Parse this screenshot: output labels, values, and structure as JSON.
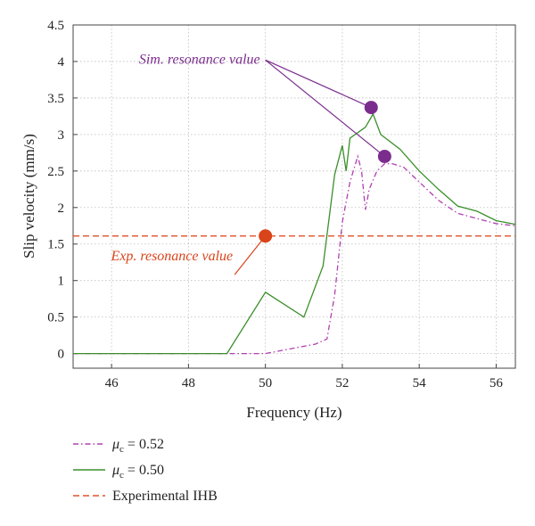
{
  "chart_data": {
    "type": "line",
    "xlabel": "Frequency (Hz)",
    "ylabel": "Slip velocity (mm/s)",
    "xlim": [
      45,
      56.5
    ],
    "ylim": [
      -0.2,
      4.5
    ],
    "xticks": [
      46,
      48,
      50,
      52,
      54,
      56
    ],
    "yticks": [
      0,
      0.5,
      1,
      1.5,
      2,
      2.5,
      3,
      3.5,
      4,
      4.5
    ],
    "xtick_labels": [
      "46",
      "48",
      "50",
      "52",
      "54",
      "56"
    ],
    "ytick_labels": [
      "0",
      "0.5",
      "1",
      "1.5",
      "2",
      "2.5",
      "3",
      "3.5",
      "4",
      "4.5"
    ],
    "grid": true,
    "series": [
      {
        "name_prefix": "μ",
        "name_sub": "c",
        "name_suffix": " = 0.52",
        "color": "#b040b0",
        "style": "dashdot",
        "x": [
          45,
          46,
          47,
          48,
          49,
          50,
          50.5,
          51,
          51.3,
          51.6,
          51.8,
          52,
          52.2,
          52.4,
          52.5,
          52.6,
          52.7,
          52.9,
          53.1,
          53.3,
          53.6,
          54,
          54.5,
          55,
          55.5,
          56,
          56.5
        ],
        "y": [
          0,
          0,
          0,
          0,
          0,
          0,
          0.05,
          0.1,
          0.13,
          0.2,
          0.8,
          1.8,
          2.35,
          2.7,
          2.5,
          1.97,
          2.25,
          2.5,
          2.6,
          2.6,
          2.55,
          2.35,
          2.1,
          1.92,
          1.85,
          1.78,
          1.75
        ]
      },
      {
        "name_prefix": "μ",
        "name_sub": "c",
        "name_suffix": " = 0.50",
        "color": "#3a8f2a",
        "style": "solid",
        "x": [
          45,
          46,
          47,
          48,
          49,
          50,
          51,
          51.5,
          51.8,
          52,
          52.1,
          52.2,
          52.6,
          52.8,
          53,
          53.5,
          54,
          54.5,
          55,
          55.5,
          56,
          56.5
        ],
        "y": [
          0,
          0,
          0,
          0,
          0,
          0.84,
          0.5,
          1.2,
          2.45,
          2.85,
          2.5,
          2.95,
          3.1,
          3.28,
          3.0,
          2.8,
          2.5,
          2.25,
          2.02,
          1.95,
          1.82,
          1.77
        ]
      },
      {
        "name": "Experimental IHB",
        "color": "#e0522a",
        "style": "dashed",
        "x": [
          45,
          56.5
        ],
        "y": [
          1.61,
          1.61
        ]
      }
    ],
    "markers": [
      {
        "x": 52.75,
        "y": 3.37,
        "color": "#7b2d8e"
      },
      {
        "x": 53.1,
        "y": 2.7,
        "color": "#7b2d8e"
      },
      {
        "x": 50.0,
        "y": 1.61,
        "color": "#d9441b"
      }
    ],
    "annotations": [
      {
        "text": "Sim. resonance value",
        "color": "#7b2d8e",
        "anchor_x": 50,
        "anchor_y": 4.02,
        "targets": [
          [
            52.75,
            3.37
          ],
          [
            53.1,
            2.7
          ]
        ]
      },
      {
        "text": "Exp. resonance value",
        "color": "#d9441b",
        "anchor_x": 49.2,
        "anchor_y": 1.08,
        "targets": [
          [
            50.0,
            1.61
          ]
        ]
      }
    ]
  }
}
